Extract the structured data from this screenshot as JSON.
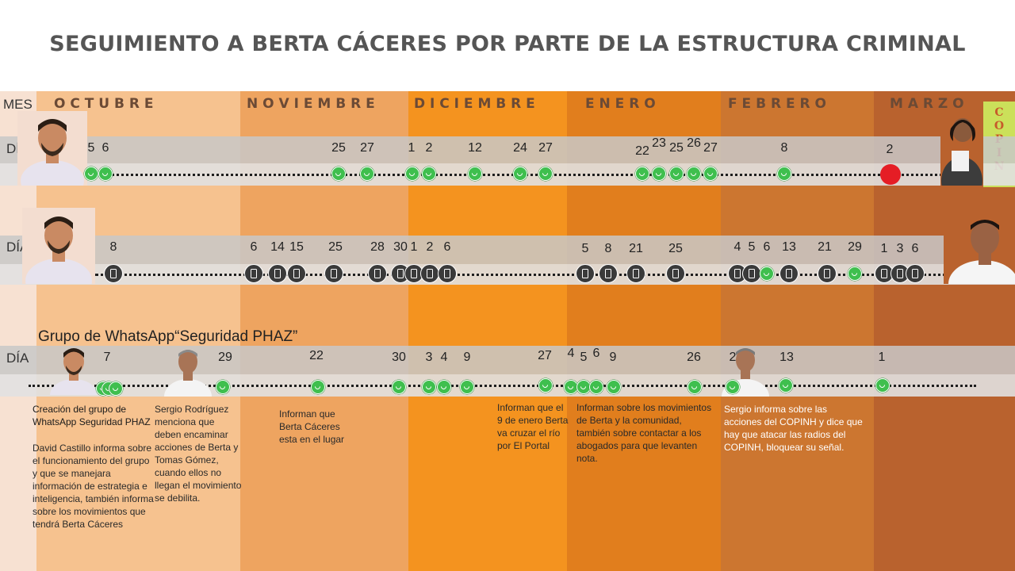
{
  "title": "SEGUIMIENTO A BERTA CÁCERES POR PARTE DE LA ESTRUCTURA CRIMINAL",
  "mes_label": "MES",
  "dia_label": "DÍA",
  "months": [
    "O C T U B R E",
    "N O V I E M B R E",
    "D I C I E M B R E",
    "E N E R O",
    "F E B R E R O",
    "M A R Z O"
  ],
  "colors": {
    "octubre": "#f6c28f",
    "noviembre": "#eea460",
    "diciembre": "#f4931f",
    "enero": "#e17e1d",
    "febrero": "#cc7630",
    "marzo": "#b9622e",
    "left_margin": "#f7e1d2",
    "whatsapp": "#3fbf4e",
    "phone": "#3a3a3a",
    "red": "#e51d25"
  },
  "row1_days": [
    "5",
    "6",
    "25",
    "27",
    "1",
    "2",
    "12",
    "24",
    "27",
    "22",
    "23",
    "25",
    "26",
    "27",
    "8",
    "2"
  ],
  "row2_days": [
    "8",
    "6",
    "14",
    "15",
    "25",
    "28",
    "30",
    "1",
    "2",
    "6",
    "5",
    "8",
    "21",
    "25",
    "4",
    "5",
    "6",
    "13",
    "21",
    "29",
    "1",
    "3",
    "6"
  ],
  "row3_days": [
    "7",
    "29",
    "22",
    "30",
    "3",
    "4",
    "9",
    "27",
    "4",
    "5",
    "6",
    "9",
    "26",
    "2",
    "13",
    "1"
  ],
  "group_title": "Grupo de WhatsApp“Seguridad PHAZ”",
  "copinh_text": "COPIN",
  "notes": {
    "n1": "Creación del grupo de WhatsApp Seguridad PHAZ",
    "n2": "David Castillo informa sobre el funcionamiento del grupo y que se manejara información de estrategia e inteligencia, también informa sobre los movimientos que tendrá Berta Cáceres",
    "n3": "Sergio Rodríguez menciona que deben encaminar acciones de Berta y Tomas Gómez, cuando ellos no llegan el movimiento se debilita.",
    "n4": "Informan que Berta Cáceres esta en el lugar",
    "n5": "Informan que el 9 de enero Berta va cruzar el río por El Portal",
    "n6": "Informan sobre los movimientos de Berta y la comunidad, también sobre contactar a los abogados para que levanten nota.",
    "n7": "Sergio informa sobre las acciones del COPINH y dice que hay que atacar las radios del COPINH, bloquear su señal."
  }
}
